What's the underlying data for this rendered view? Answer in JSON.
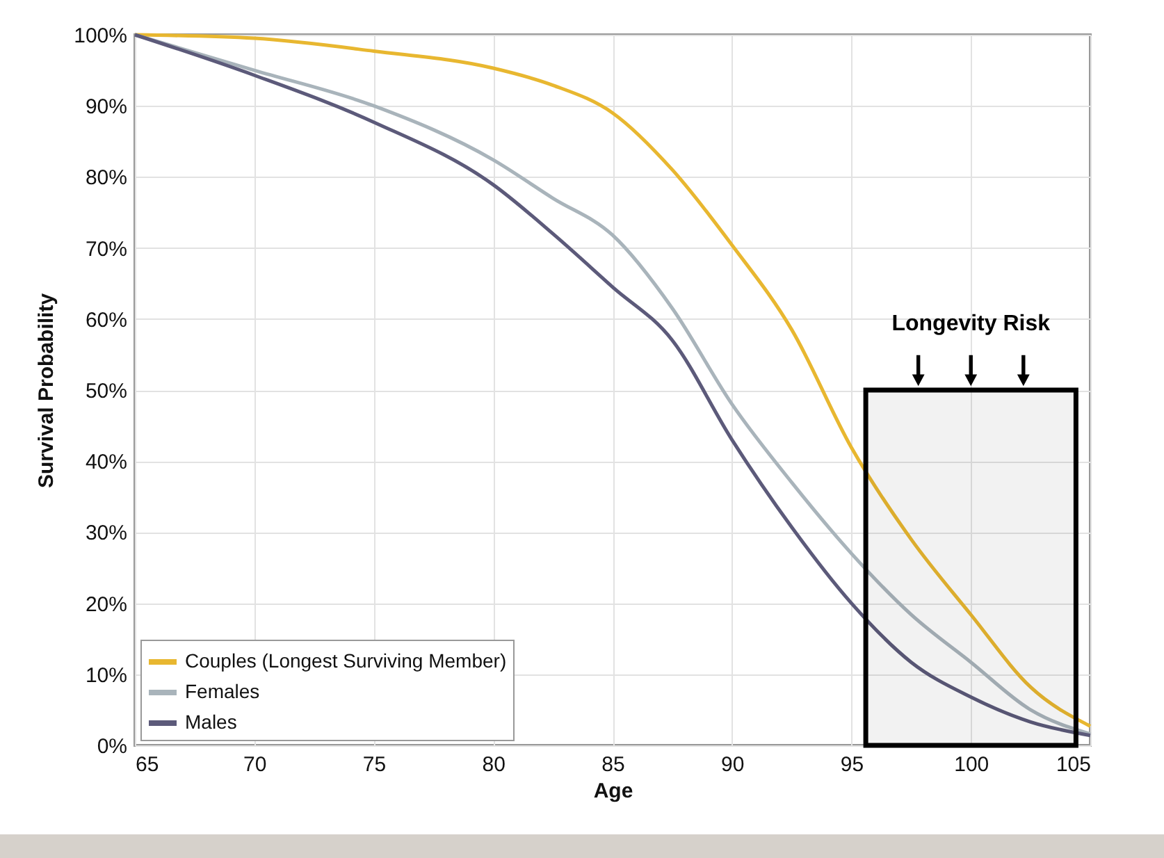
{
  "chart_data": {
    "type": "line",
    "xlabel": "Age",
    "ylabel": "Survival Probability",
    "xlim": [
      65,
      105
    ],
    "xticks": [
      65,
      70,
      75,
      80,
      85,
      90,
      95,
      100,
      105
    ],
    "ylim": [
      0,
      100
    ],
    "yticks": [
      {
        "value": 0,
        "label": "0%"
      },
      {
        "value": 10,
        "label": "10%"
      },
      {
        "value": 20,
        "label": "20%"
      },
      {
        "value": 30,
        "label": "30%"
      },
      {
        "value": 40,
        "label": "40%"
      },
      {
        "value": 50,
        "label": "50%"
      },
      {
        "value": 60,
        "label": "60%"
      },
      {
        "value": 70,
        "label": "70%"
      },
      {
        "value": 80,
        "label": "80%"
      },
      {
        "value": 90,
        "label": "90%"
      },
      {
        "value": 100,
        "label": "100%"
      }
    ],
    "x": [
      65,
      70,
      75,
      80,
      82.5,
      85,
      87.5,
      90,
      92.5,
      95,
      97.5,
      100,
      102.5,
      105
    ],
    "series": [
      {
        "name": "Couples (Longest Surviving Member)",
        "color": "#e8b730",
        "values": [
          100,
          99.5,
          97.7,
          95.3,
          92.9,
          89,
          81,
          70.4,
          58.5,
          41.9,
          29,
          18.4,
          8.2,
          2.7
        ]
      },
      {
        "name": "Females",
        "color": "#a9b4bb",
        "values": [
          100,
          95,
          90,
          82.4,
          77,
          71.8,
          61.5,
          48,
          37,
          27,
          18.4,
          11.7,
          5,
          1.6
        ]
      },
      {
        "name": "Males",
        "color": "#5c5a7a",
        "values": [
          100,
          94.3,
          87.7,
          78.9,
          72,
          64.5,
          57,
          43,
          30.7,
          20,
          11.7,
          6.8,
          3.3,
          1.4
        ]
      }
    ],
    "bands": [
      {
        "axis": "x",
        "from": 95.6,
        "to": 104.4,
        "label": "Longevity Risk"
      }
    ],
    "grid": true,
    "legend": "bottom left"
  }
}
